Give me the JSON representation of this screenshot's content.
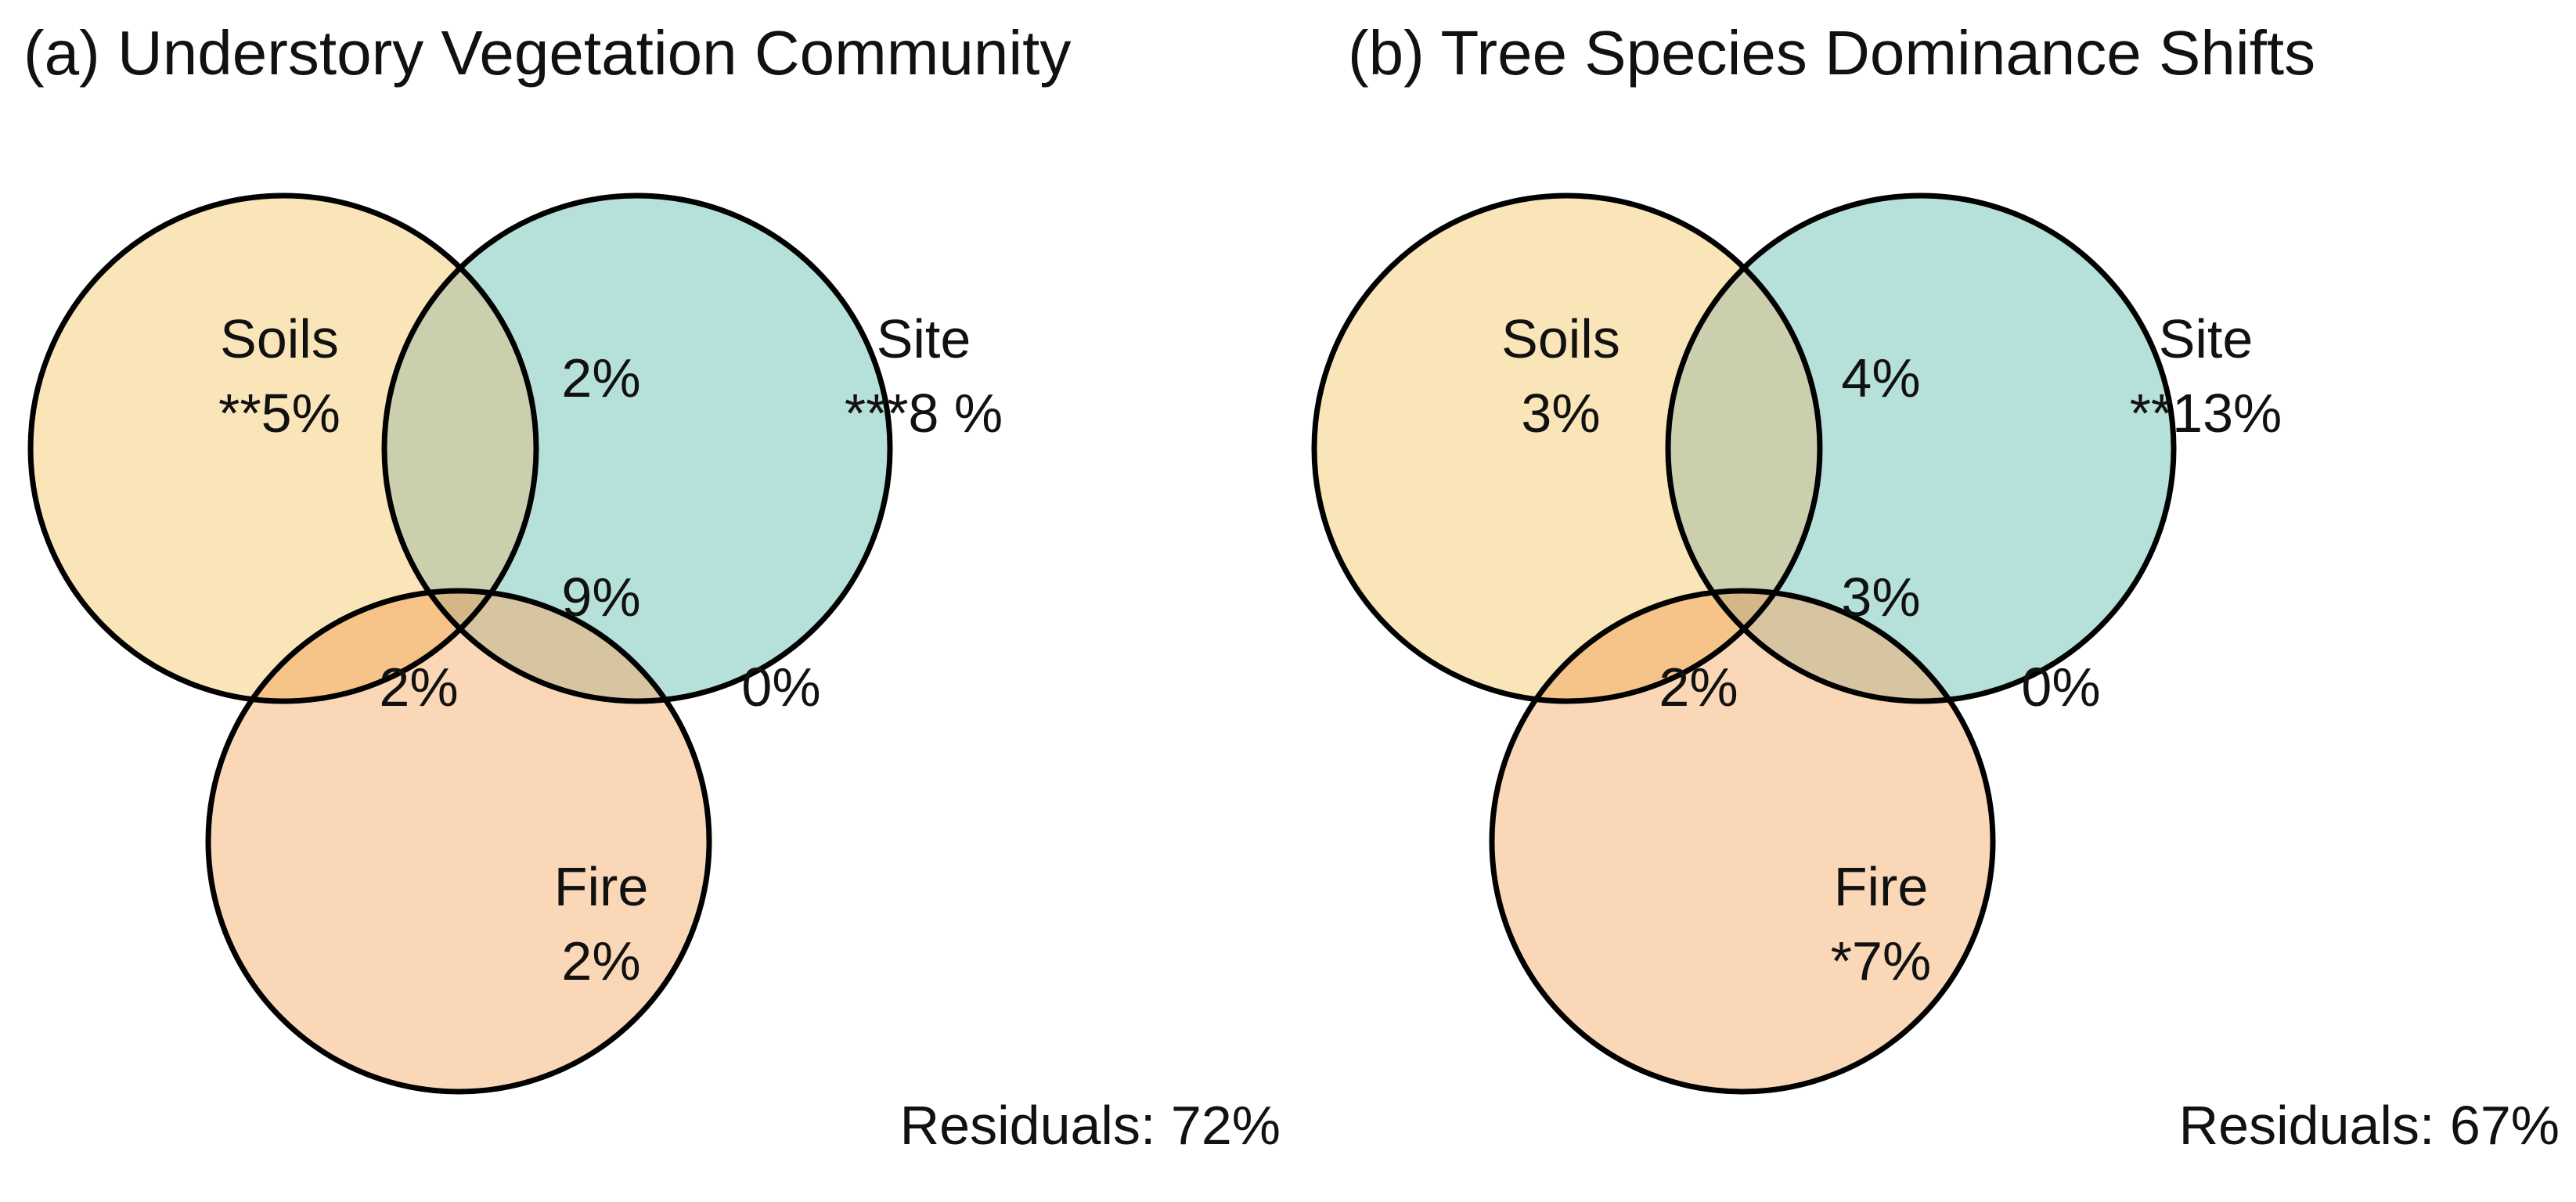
{
  "colors": {
    "soils": "#FAE5B9",
    "site": "#B6E1DA",
    "fire": "#FAD7B7",
    "soils_site": "#CBCFAE",
    "soils_fire": "#F6C389",
    "site_fire": "#D7C4A1",
    "center": "#D5B787",
    "outline": "#000000",
    "text": "#111111"
  },
  "panels": [
    {
      "title": "(a) Understory Vegetation Community",
      "sets": {
        "soils": {
          "name": "Soils",
          "value": "**5%"
        },
        "site": {
          "name": "Site",
          "value": "***8 %"
        },
        "fire": {
          "name": "Fire",
          "value": "2%"
        }
      },
      "intersections": {
        "soils_site": "2%",
        "soils_fire": "2%",
        "site_fire": "0%",
        "all": "9%"
      },
      "residuals": "Residuals: 72%"
    },
    {
      "title": "(b) Tree Species Dominance Shifts",
      "sets": {
        "soils": {
          "name": "Soils",
          "value": "3%"
        },
        "site": {
          "name": "Site",
          "value": "**13%"
        },
        "fire": {
          "name": "Fire",
          "value": "*7%"
        }
      },
      "intersections": {
        "soils_site": "4%",
        "soils_fire": "2%",
        "site_fire": "0%",
        "all": "3%"
      },
      "residuals": "Residuals: 67%"
    }
  ]
}
